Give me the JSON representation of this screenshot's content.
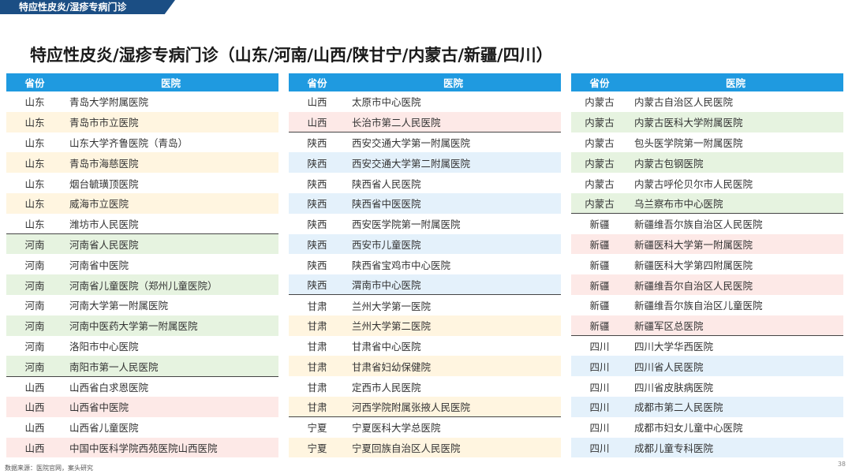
{
  "header": {
    "tag": "特应性皮炎/湿疹专病门诊"
  },
  "title": "特应性皮炎/湿疹专病门诊（山东/河南/山西/陕甘宁/内蒙古/新疆/四川）",
  "columns": {
    "province": "省份",
    "hospital": "医院"
  },
  "colors": {
    "header_bg": "#1f9ae0",
    "tag_bg": "#1b4e84",
    "band": {
      "yellow": "#fff5e0",
      "green": "#e6f3e0",
      "pink": "#fde9e7",
      "blue": "#e4f1fb",
      "white": "#ffffff"
    }
  },
  "tables": [
    {
      "rows": [
        {
          "province": "山东",
          "hospital": "青岛大学附属医院",
          "band": "white"
        },
        {
          "province": "山东",
          "hospital": "青岛市市立医院",
          "band": "yellow"
        },
        {
          "province": "山东",
          "hospital": "山东大学齐鲁医院（青岛）",
          "band": "white"
        },
        {
          "province": "山东",
          "hospital": "青岛市海慈医院",
          "band": "yellow"
        },
        {
          "province": "山东",
          "hospital": "烟台毓璜顶医院",
          "band": "white"
        },
        {
          "province": "山东",
          "hospital": "威海市立医院",
          "band": "yellow"
        },
        {
          "province": "山东",
          "hospital": "潍坊市人民医院",
          "band": "white"
        },
        {
          "province": "河南",
          "hospital": "河南省人民医院",
          "band": "green",
          "sep": true
        },
        {
          "province": "河南",
          "hospital": "河南省中医院",
          "band": "white"
        },
        {
          "province": "河南",
          "hospital": "河南省儿童医院（郑州儿童医院）",
          "band": "green"
        },
        {
          "province": "河南",
          "hospital": "河南大学第一附属医院",
          "band": "white"
        },
        {
          "province": "河南",
          "hospital": "河南中医药大学第一附属医院",
          "band": "green"
        },
        {
          "province": "河南",
          "hospital": "洛阳市中心医院",
          "band": "white"
        },
        {
          "province": "河南",
          "hospital": "南阳市第一人民医院",
          "band": "green"
        },
        {
          "province": "山西",
          "hospital": "山西省白求恩医院",
          "band": "white",
          "sep": true
        },
        {
          "province": "山西",
          "hospital": "山西省中医院",
          "band": "pink"
        },
        {
          "province": "山西",
          "hospital": "山西省儿童医院",
          "band": "white"
        },
        {
          "province": "山西",
          "hospital": "中国中医科学院西苑医院山西医院",
          "band": "pink"
        }
      ]
    },
    {
      "rows": [
        {
          "province": "山西",
          "hospital": "太原市中心医院",
          "band": "white"
        },
        {
          "province": "山西",
          "hospital": "长治市第二人民医院",
          "band": "pink"
        },
        {
          "province": "陕西",
          "hospital": "西安交通大学第一附属医院",
          "band": "white",
          "sep": true
        },
        {
          "province": "陕西",
          "hospital": "西安交通大学第二附属医院",
          "band": "blue"
        },
        {
          "province": "陕西",
          "hospital": "陕西省人民医院",
          "band": "white"
        },
        {
          "province": "陕西",
          "hospital": "陕西省中医医院",
          "band": "blue"
        },
        {
          "province": "陕西",
          "hospital": "西安医学院第一附属医院",
          "band": "white"
        },
        {
          "province": "陕西",
          "hospital": "西安市儿童医院",
          "band": "blue"
        },
        {
          "province": "陕西",
          "hospital": "陕西省宝鸡市中心医院",
          "band": "white"
        },
        {
          "province": "陕西",
          "hospital": "渭南市中心医院",
          "band": "blue"
        },
        {
          "province": "甘肃",
          "hospital": "兰州大学第一医院",
          "band": "white",
          "sep": true
        },
        {
          "province": "甘肃",
          "hospital": "兰州大学第二医院",
          "band": "yellow"
        },
        {
          "province": "甘肃",
          "hospital": "甘肃省中心医院",
          "band": "white"
        },
        {
          "province": "甘肃",
          "hospital": "甘肃省妇幼保健院",
          "band": "yellow"
        },
        {
          "province": "甘肃",
          "hospital": "定西市人民医院",
          "band": "white"
        },
        {
          "province": "甘肃",
          "hospital": "河西学院附属张掖人民医院",
          "band": "yellow"
        },
        {
          "province": "宁夏",
          "hospital": "宁夏医科大学总医院",
          "band": "white",
          "sep": true
        },
        {
          "province": "宁夏",
          "hospital": "宁夏回族自治区人民医院",
          "band": "yellow"
        }
      ]
    },
    {
      "rows": [
        {
          "province": "内蒙古",
          "hospital": "内蒙古自治区人民医院",
          "band": "white"
        },
        {
          "province": "内蒙古",
          "hospital": "内蒙古医科大学附属医院",
          "band": "green"
        },
        {
          "province": "内蒙古",
          "hospital": "包头医学院第一附属医院",
          "band": "white"
        },
        {
          "province": "内蒙古",
          "hospital": "内蒙古包钢医院",
          "band": "green"
        },
        {
          "province": "内蒙古",
          "hospital": "内蒙古呼伦贝尔市人民医院",
          "band": "white"
        },
        {
          "province": "内蒙古",
          "hospital": "乌兰察布市中心医院",
          "band": "green"
        },
        {
          "province": "新疆",
          "hospital": "新疆维吾尔族自治区人民医院",
          "band": "white",
          "sep": true
        },
        {
          "province": "新疆",
          "hospital": "新疆医科大学第一附属医院",
          "band": "pink"
        },
        {
          "province": "新疆",
          "hospital": "新疆医科大学第四附属医院",
          "band": "white"
        },
        {
          "province": "新疆",
          "hospital": "新疆维吾尔自治区人民医院",
          "band": "pink"
        },
        {
          "province": "新疆",
          "hospital": "新疆维吾尔族自治区儿童医院",
          "band": "white"
        },
        {
          "province": "新疆",
          "hospital": "新疆军区总医院",
          "band": "pink"
        },
        {
          "province": "四川",
          "hospital": "四川大学华西医院",
          "band": "white",
          "sep": true
        },
        {
          "province": "四川",
          "hospital": "四川省人民医院",
          "band": "blue"
        },
        {
          "province": "四川",
          "hospital": "四川省皮肤病医院",
          "band": "white"
        },
        {
          "province": "四川",
          "hospital": "成都市第二人民医院",
          "band": "blue"
        },
        {
          "province": "四川",
          "hospital": "成都市妇女儿童中心医院",
          "band": "white"
        },
        {
          "province": "四川",
          "hospital": "成都儿童专科医院",
          "band": "blue"
        }
      ]
    }
  ],
  "footer": {
    "source": "数据来源：医院官网，案头研究",
    "page": "38"
  }
}
